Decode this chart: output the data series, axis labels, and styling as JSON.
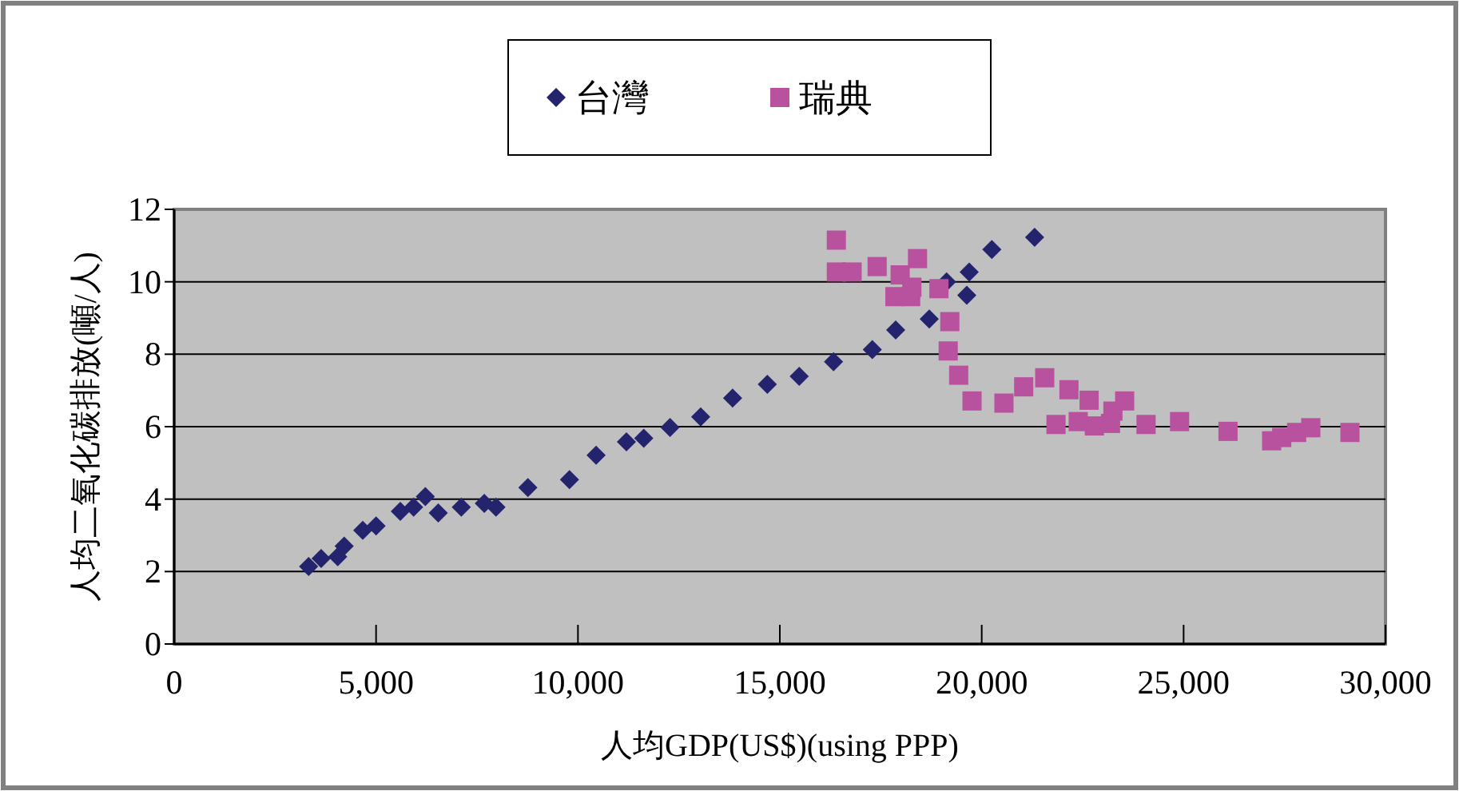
{
  "chart_data": {
    "type": "scatter",
    "xlabel": "人均GDP(US$)(using PPP)",
    "ylabel": "人均二氧化碳排放(噸/人)",
    "xlim": [
      0,
      30000
    ],
    "xticks": [
      0,
      {
        "value": 5000,
        "label": "5,000"
      },
      {
        "value": 10000,
        "label": "10,000"
      },
      {
        "value": 15000,
        "label": "15,000"
      },
      {
        "value": 20000,
        "label": "20,000"
      },
      {
        "value": 25000,
        "label": "25,000"
      },
      {
        "value": 30000,
        "label": "30,000"
      }
    ],
    "ylim": [
      0,
      12
    ],
    "yticks": [
      0,
      2,
      4,
      6,
      8,
      10,
      12
    ],
    "grid": "y",
    "legend": "top",
    "series": [
      {
        "name": "台灣",
        "color": "#24246e",
        "marker": "diamond",
        "x": [
          3330,
          3640,
          4050,
          4210,
          4670,
          5000,
          5600,
          5930,
          6220,
          6540,
          7110,
          7680,
          7970,
          8760,
          9790,
          10450,
          11200,
          11630,
          12280,
          13040,
          13830,
          14690,
          15480,
          16330,
          17290,
          17870,
          18700,
          19130,
          19630,
          19690,
          20250,
          21310
        ],
        "values": [
          2.14,
          2.36,
          2.41,
          2.7,
          3.14,
          3.26,
          3.66,
          3.78,
          4.07,
          3.62,
          3.78,
          3.88,
          3.78,
          4.32,
          4.54,
          5.21,
          5.58,
          5.68,
          5.98,
          6.27,
          6.79,
          7.17,
          7.39,
          7.79,
          8.13,
          8.67,
          8.97,
          10.0,
          9.63,
          10.27,
          10.89,
          11.23
        ]
      },
      {
        "name": "瑞典",
        "color": "#b8529e",
        "marker": "square",
        "x": [
          16400,
          16400,
          16790,
          17410,
          18410,
          17980,
          17850,
          18240,
          18270,
          18940,
          19210,
          19170,
          19430,
          19760,
          20550,
          21040,
          21560,
          22160,
          21840,
          22390,
          22660,
          22790,
          23190,
          23250,
          23540,
          24070,
          24900,
          26100,
          27180,
          27430,
          27800,
          28150,
          29120
        ],
        "values": [
          11.15,
          10.27,
          10.27,
          10.42,
          10.64,
          10.19,
          9.59,
          9.59,
          9.85,
          9.81,
          8.9,
          8.09,
          7.42,
          6.71,
          6.65,
          7.1,
          7.35,
          7.02,
          6.06,
          6.14,
          6.73,
          6.02,
          6.09,
          6.43,
          6.71,
          6.06,
          6.14,
          5.87,
          5.61,
          5.7,
          5.84,
          5.97,
          5.84
        ]
      }
    ]
  }
}
